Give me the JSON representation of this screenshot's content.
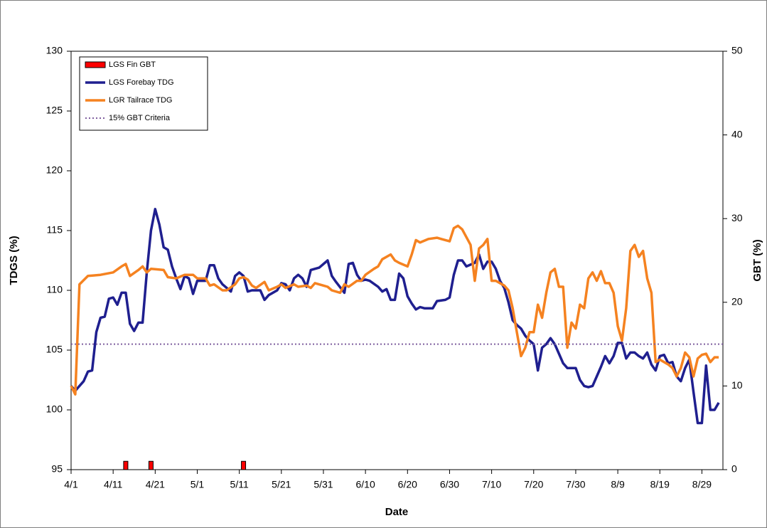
{
  "chart_data": {
    "type": "line",
    "x_label": "Date",
    "y_label": "TDGS (%)",
    "y2_label": "GBT (%)",
    "xlim": [
      0,
      155
    ],
    "xticks": [
      {
        "value": 0,
        "label": "4/1"
      },
      {
        "value": 10,
        "label": "4/11"
      },
      {
        "value": 20,
        "label": "4/21"
      },
      {
        "value": 30,
        "label": "5/1"
      },
      {
        "value": 40,
        "label": "5/11"
      },
      {
        "value": 50,
        "label": "5/21"
      },
      {
        "value": 60,
        "label": "5/31"
      },
      {
        "value": 70,
        "label": "6/10"
      },
      {
        "value": 80,
        "label": "6/20"
      },
      {
        "value": 90,
        "label": "6/30"
      },
      {
        "value": 100,
        "label": "7/10"
      },
      {
        "value": 110,
        "label": "7/20"
      },
      {
        "value": 120,
        "label": "7/30"
      },
      {
        "value": 130,
        "label": "8/9"
      },
      {
        "value": 140,
        "label": "8/19"
      },
      {
        "value": 150,
        "label": "8/29"
      }
    ],
    "ylim": [
      95,
      130
    ],
    "yticks": [
      95,
      100,
      105,
      110,
      115,
      120,
      125,
      130
    ],
    "y2lim": [
      0,
      50
    ],
    "y2ticks": [
      0,
      10,
      20,
      30,
      40,
      50
    ],
    "legend": "top-left",
    "series": [
      {
        "name": "LGS Fin GBT",
        "type": "bar",
        "axis": "y2",
        "color": "#ff0000",
        "x": [
          13,
          19,
          41
        ],
        "values": [
          1,
          1,
          1
        ]
      },
      {
        "name": "LGS Forebay TDG",
        "type": "line",
        "color": "#1f1f8f",
        "x": [
          0,
          1,
          3,
          4,
          5,
          6,
          7,
          8,
          9,
          10,
          11,
          12,
          13,
          14,
          15,
          16,
          17,
          18,
          19,
          20,
          21,
          22,
          23,
          24,
          25,
          26,
          27,
          28,
          29,
          30,
          32,
          33,
          34,
          35,
          36,
          37,
          38,
          39,
          40,
          41,
          42,
          43,
          45,
          46,
          47,
          49,
          50,
          51,
          52,
          53,
          54,
          55,
          56,
          57,
          59,
          61,
          62,
          63,
          65,
          66,
          67,
          68,
          69,
          70,
          71,
          73,
          74,
          75,
          76,
          77,
          78,
          79,
          80,
          81,
          82,
          83,
          84,
          86,
          87,
          89,
          90,
          91,
          92,
          93,
          94,
          96,
          97,
          98,
          99,
          100,
          101,
          102,
          103,
          104,
          105,
          106,
          107,
          108,
          109,
          110,
          111,
          112,
          113,
          114,
          115,
          116,
          117,
          118,
          120,
          121,
          122,
          123,
          124,
          125,
          126,
          127,
          128,
          129,
          130,
          131,
          132,
          133,
          134,
          135,
          136,
          137,
          138,
          139,
          140,
          141,
          142,
          143,
          144,
          145,
          146,
          147,
          148,
          149,
          150,
          151,
          152,
          153,
          154
        ],
        "values": [
          102.0,
          101.6,
          102.4,
          103.2,
          103.3,
          106.5,
          107.7,
          107.8,
          109.3,
          109.4,
          108.8,
          109.8,
          109.8,
          107.2,
          106.6,
          107.3,
          107.3,
          111.5,
          115.0,
          116.8,
          115.5,
          113.6,
          113.4,
          112.0,
          111.0,
          110.1,
          111.2,
          111.0,
          109.7,
          110.8,
          110.8,
          112.1,
          112.1,
          111.0,
          110.5,
          110.2,
          109.9,
          111.2,
          111.5,
          111.2,
          109.9,
          110.0,
          110.0,
          109.2,
          109.6,
          110.0,
          110.6,
          110.5,
          110.0,
          111.0,
          111.3,
          111.0,
          110.3,
          111.7,
          111.9,
          112.5,
          111.2,
          110.7,
          109.8,
          112.2,
          112.3,
          111.3,
          110.8,
          110.9,
          110.8,
          110.3,
          109.9,
          110.1,
          109.2,
          109.2,
          111.4,
          111.0,
          109.5,
          108.9,
          108.4,
          108.6,
          108.5,
          108.5,
          109.1,
          109.2,
          109.4,
          111.3,
          112.5,
          112.5,
          112.0,
          112.3,
          113.0,
          111.8,
          112.4,
          112.4,
          111.8,
          110.8,
          110.2,
          109.0,
          107.5,
          107.1,
          106.8,
          106.2,
          105.8,
          105.5,
          103.3,
          105.2,
          105.5,
          106.0,
          105.5,
          104.7,
          103.9,
          103.5,
          103.5,
          102.5,
          102.0,
          101.9,
          102.0,
          102.8,
          103.6,
          104.5,
          103.9,
          104.5,
          105.6,
          105.6,
          104.3,
          104.8,
          104.8,
          104.5,
          104.3,
          104.8,
          103.8,
          103.3,
          104.5,
          104.6,
          103.9,
          104.0,
          102.8,
          102.4,
          103.5,
          104.2,
          101.5,
          98.9,
          98.9,
          103.7,
          100.0,
          100.0,
          100.6
        ]
      },
      {
        "name": "LGR Tailrace TDG",
        "type": "line",
        "color": "#f58220",
        "x": [
          0,
          1,
          2,
          4,
          7,
          10,
          12,
          13,
          14,
          16,
          17,
          18,
          19,
          22,
          23,
          25,
          27,
          29,
          30,
          32,
          33,
          34,
          36,
          37,
          39,
          40,
          41,
          42,
          43,
          44,
          46,
          47,
          49,
          50,
          51,
          53,
          54,
          56,
          57,
          58,
          60,
          61,
          62,
          64,
          65,
          66,
          68,
          69,
          70,
          72,
          73,
          74,
          76,
          77,
          78,
          80,
          81,
          82,
          83,
          85,
          87,
          88,
          90,
          91,
          92,
          93,
          95,
          96,
          97,
          98,
          99,
          100,
          101,
          103,
          104,
          105,
          106,
          107,
          108,
          109,
          110,
          111,
          112,
          113,
          114,
          115,
          116,
          117,
          118,
          119,
          120,
          121,
          122,
          123,
          124,
          125,
          126,
          127,
          128,
          129,
          130,
          131,
          132,
          133,
          134,
          135,
          136,
          137,
          138,
          139,
          140,
          141,
          142,
          143,
          144,
          145,
          146,
          147,
          148,
          149,
          150,
          151,
          152,
          153,
          154
        ],
        "values": [
          102.0,
          101.3,
          110.5,
          111.2,
          111.3,
          111.5,
          112.0,
          112.2,
          111.2,
          111.7,
          112.0,
          111.5,
          111.8,
          111.7,
          111.1,
          111.0,
          111.3,
          111.3,
          111.0,
          111.0,
          110.4,
          110.5,
          110.0,
          110.0,
          110.5,
          111.0,
          111.1,
          110.9,
          110.4,
          110.2,
          110.7,
          110.0,
          110.3,
          110.5,
          110.2,
          110.5,
          110.3,
          110.4,
          110.2,
          110.6,
          110.4,
          110.3,
          110.0,
          109.8,
          110.5,
          110.3,
          110.8,
          110.8,
          111.3,
          111.8,
          112.0,
          112.6,
          113.0,
          112.5,
          112.3,
          112.0,
          113.0,
          114.2,
          114.0,
          114.3,
          114.4,
          114.3,
          114.1,
          115.2,
          115.4,
          115.1,
          113.8,
          110.8,
          113.5,
          113.8,
          114.3,
          110.8,
          110.8,
          110.4,
          110.0,
          108.5,
          106.5,
          104.5,
          105.2,
          106.5,
          106.5,
          108.8,
          107.7,
          109.8,
          111.5,
          111.8,
          110.3,
          110.3,
          105.2,
          107.3,
          106.8,
          108.8,
          108.5,
          111.0,
          111.5,
          110.8,
          111.6,
          110.6,
          110.6,
          109.8,
          107.0,
          105.8,
          108.5,
          113.3,
          113.8,
          112.8,
          113.3,
          111.0,
          109.8,
          104.0,
          104.2,
          104.0,
          103.8,
          103.5,
          102.8,
          103.5,
          104.8,
          104.4,
          102.8,
          104.3,
          104.6,
          104.7,
          104.0,
          104.4,
          104.4
        ]
      },
      {
        "name": "15% GBT Criteria",
        "type": "line",
        "dash": true,
        "color": "#7f5f9f",
        "x": [
          0,
          155
        ],
        "values": [
          105.5,
          105.5
        ]
      }
    ]
  }
}
